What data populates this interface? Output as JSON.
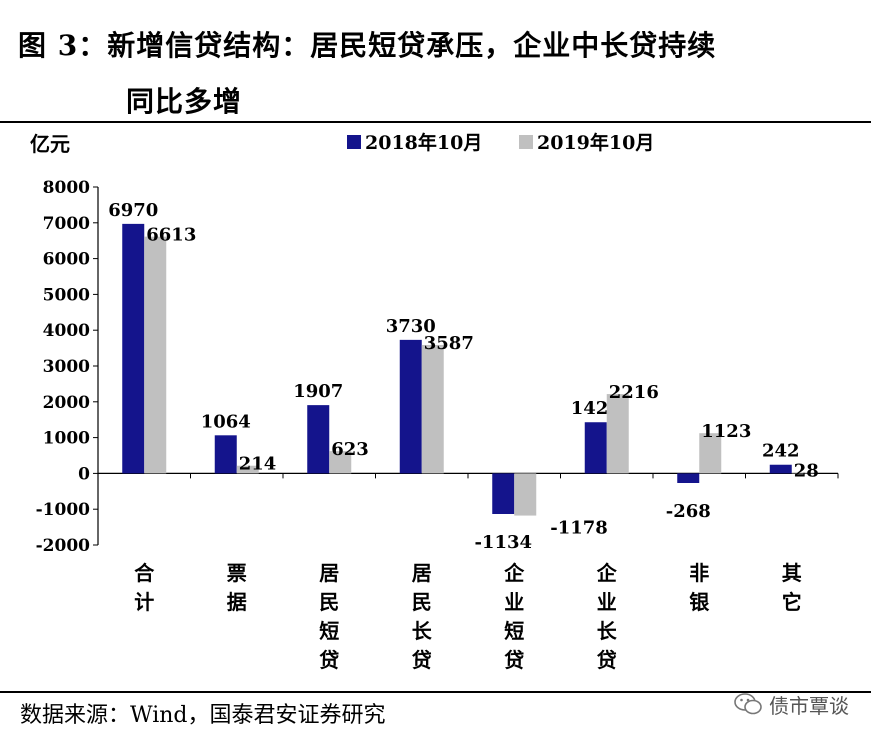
{
  "figure_title_line1": "图 3：新增信贷结构：居民短贷承压，企业中长贷持续",
  "figure_title_line2": "同比多增",
  "source_note": "数据来源：Wind，国泰君安证券研究",
  "watermark_text": "债市覃谈",
  "watermark_icon": "wechat-icon",
  "colors": {
    "series_2018": "#14148c",
    "series_2019": "#c0c0c0"
  },
  "chart_data": {
    "type": "bar",
    "unit_label": "亿元",
    "categories": [
      "合计",
      "票据",
      "居民短贷",
      "居民长贷",
      "企业短贷",
      "企业长贷",
      "非银",
      "其它"
    ],
    "category_label_lines": [
      [
        "合",
        "计"
      ],
      [
        "票",
        "据"
      ],
      [
        "居",
        "民",
        "短",
        "贷"
      ],
      [
        "居",
        "民",
        "长",
        "贷"
      ],
      [
        "企",
        "业",
        "短",
        "贷"
      ],
      [
        "企",
        "业",
        "长",
        "贷"
      ],
      [
        "非",
        "银"
      ],
      [
        "其",
        "它"
      ]
    ],
    "series": [
      {
        "name": "2018年10月",
        "values": [
          6970,
          1064,
          1907,
          3730,
          -1134,
          1429,
          -268,
          242
        ]
      },
      {
        "name": "2019年10月",
        "values": [
          6613,
          214,
          623,
          3587,
          -1178,
          2216,
          1123,
          28
        ]
      }
    ],
    "ylim": [
      -2000,
      8000
    ],
    "yticks": [
      -2000,
      -1000,
      0,
      1000,
      2000,
      3000,
      4000,
      5000,
      6000,
      7000,
      8000
    ],
    "legend_position": "top-center",
    "grid": false
  }
}
